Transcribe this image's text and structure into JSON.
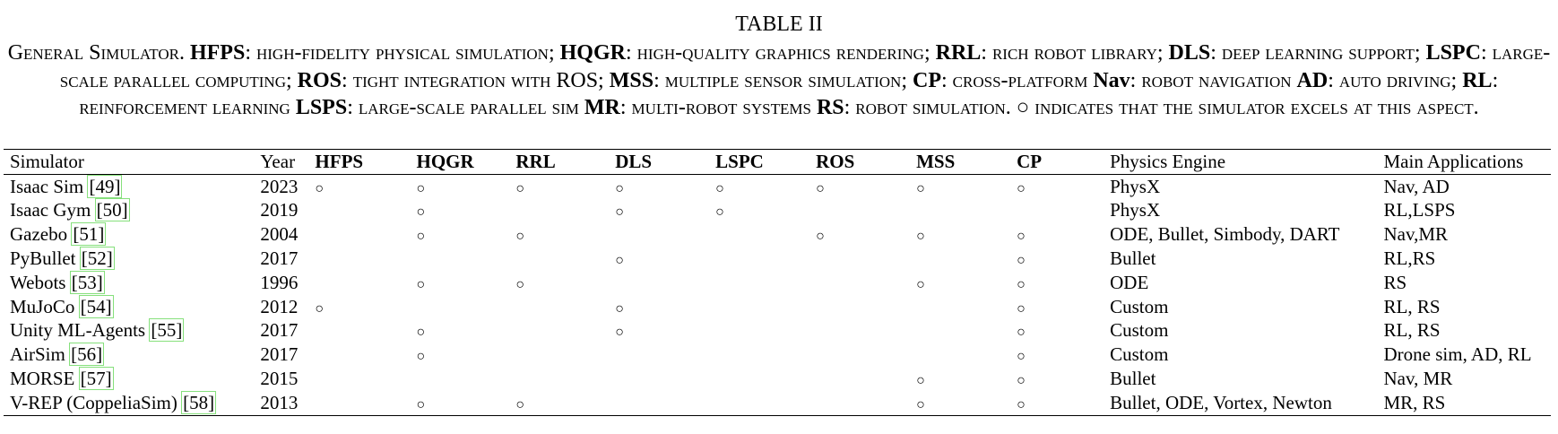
{
  "title": "TABLE II",
  "caption": [
    {
      "t": "General Simulator. ",
      "b": false
    },
    {
      "t": "HFPS",
      "b": true
    },
    {
      "t": ": high-fidelity physical simulation; ",
      "b": false
    },
    {
      "t": "HQGR",
      "b": true
    },
    {
      "t": ": high-quality graphics rendering; ",
      "b": false
    },
    {
      "t": "RRL",
      "b": true
    },
    {
      "t": ": rich robot library; ",
      "b": false
    },
    {
      "t": "DLS",
      "b": true
    },
    {
      "t": ": deep learning support; ",
      "b": false
    },
    {
      "t": "LSPC",
      "b": true
    },
    {
      "t": ": large-scale parallel computing; ",
      "b": false
    },
    {
      "t": "ROS",
      "b": true
    },
    {
      "t": ": tight integration with ROS; ",
      "b": false
    },
    {
      "t": "MSS",
      "b": true
    },
    {
      "t": ": multiple sensor simulation; ",
      "b": false
    },
    {
      "t": "CP",
      "b": true
    },
    {
      "t": ": cross-platform ",
      "b": false
    },
    {
      "t": "Nav",
      "b": true
    },
    {
      "t": ": robot navigation ",
      "b": false
    },
    {
      "t": "AD",
      "b": true
    },
    {
      "t": ": auto driving; ",
      "b": false
    },
    {
      "t": "RL",
      "b": true
    },
    {
      "t": ": reinforcement learning ",
      "b": false
    },
    {
      "t": "LSPS",
      "b": true
    },
    {
      "t": ": large-scale parallel sim ",
      "b": false
    },
    {
      "t": "MR",
      "b": true
    },
    {
      "t": ": multi-robot systems ",
      "b": false
    },
    {
      "t": "RS",
      "b": true
    },
    {
      "t": ": robot simulation. ○ indicates that the simulator excels at this aspect.",
      "b": false
    }
  ],
  "mark_symbol": "○",
  "columns": [
    {
      "key": "simulator",
      "label": "Simulator",
      "bold": false
    },
    {
      "key": "year",
      "label": "Year",
      "bold": false
    },
    {
      "key": "hfps",
      "label": "HFPS",
      "bold": true
    },
    {
      "key": "hqgr",
      "label": "HQGR",
      "bold": true
    },
    {
      "key": "rrl",
      "label": "RRL",
      "bold": true
    },
    {
      "key": "dls",
      "label": "DLS",
      "bold": true
    },
    {
      "key": "lspc",
      "label": "LSPC",
      "bold": true
    },
    {
      "key": "ros",
      "label": "ROS",
      "bold": true
    },
    {
      "key": "mss",
      "label": "MSS",
      "bold": true
    },
    {
      "key": "cp",
      "label": "CP",
      "bold": true
    },
    {
      "key": "engine",
      "label": "Physics Engine",
      "bold": false
    },
    {
      "key": "apps",
      "label": "Main Applications",
      "bold": false
    }
  ],
  "rows": [
    {
      "name": "Isaac Sim",
      "cite": "[49]",
      "year": "2023",
      "hfps": true,
      "hqgr": true,
      "rrl": true,
      "dls": true,
      "lspc": true,
      "ros": true,
      "mss": true,
      "cp": true,
      "engine": "PhysX",
      "apps": "Nav, AD"
    },
    {
      "name": "Isaac Gym",
      "cite": "[50]",
      "year": "2019",
      "hfps": false,
      "hqgr": true,
      "rrl": false,
      "dls": true,
      "lspc": true,
      "ros": false,
      "mss": false,
      "cp": false,
      "engine": "PhysX",
      "apps": "RL,LSPS"
    },
    {
      "name": "Gazebo",
      "cite": "[51]",
      "year": "2004",
      "hfps": false,
      "hqgr": true,
      "rrl": true,
      "dls": false,
      "lspc": false,
      "ros": true,
      "mss": true,
      "cp": true,
      "engine": "ODE, Bullet, Simbody, DART",
      "apps": "Nav,MR"
    },
    {
      "name": "PyBullet",
      "cite": "[52]",
      "year": "2017",
      "hfps": false,
      "hqgr": false,
      "rrl": false,
      "dls": true,
      "lspc": false,
      "ros": false,
      "mss": false,
      "cp": true,
      "engine": "Bullet",
      "apps": "RL,RS"
    },
    {
      "name": "Webots",
      "cite": "[53]",
      "year": "1996",
      "hfps": false,
      "hqgr": true,
      "rrl": true,
      "dls": false,
      "lspc": false,
      "ros": false,
      "mss": true,
      "cp": true,
      "engine": "ODE",
      "apps": "RS"
    },
    {
      "name": "MuJoCo",
      "cite": "[54]",
      "year": "2012",
      "hfps": true,
      "hqgr": false,
      "rrl": false,
      "dls": true,
      "lspc": false,
      "ros": false,
      "mss": false,
      "cp": true,
      "engine": "Custom",
      "apps": "RL, RS"
    },
    {
      "name": "Unity ML-Agents",
      "cite": "[55]",
      "year": "2017",
      "hfps": false,
      "hqgr": true,
      "rrl": false,
      "dls": true,
      "lspc": false,
      "ros": false,
      "mss": false,
      "cp": true,
      "engine": "Custom",
      "apps": "RL, RS"
    },
    {
      "name": "AirSim",
      "cite": "[56]",
      "year": "2017",
      "hfps": false,
      "hqgr": true,
      "rrl": false,
      "dls": false,
      "lspc": false,
      "ros": false,
      "mss": false,
      "cp": true,
      "engine": "Custom",
      "apps": "Drone sim, AD, RL"
    },
    {
      "name": "MORSE",
      "cite": "[57]",
      "year": "2015",
      "hfps": false,
      "hqgr": false,
      "rrl": false,
      "dls": false,
      "lspc": false,
      "ros": false,
      "mss": true,
      "cp": true,
      "engine": "Bullet",
      "apps": "Nav, MR"
    },
    {
      "name": "V-REP (CoppeliaSim)",
      "cite": "[58]",
      "year": "2013",
      "hfps": false,
      "hqgr": true,
      "rrl": true,
      "dls": false,
      "lspc": false,
      "ros": false,
      "mss": true,
      "cp": true,
      "engine": "Bullet, ODE, Vortex, Newton",
      "apps": "MR, RS"
    }
  ],
  "colors": {
    "citation_box": "#86e07c",
    "text": "#000000"
  }
}
